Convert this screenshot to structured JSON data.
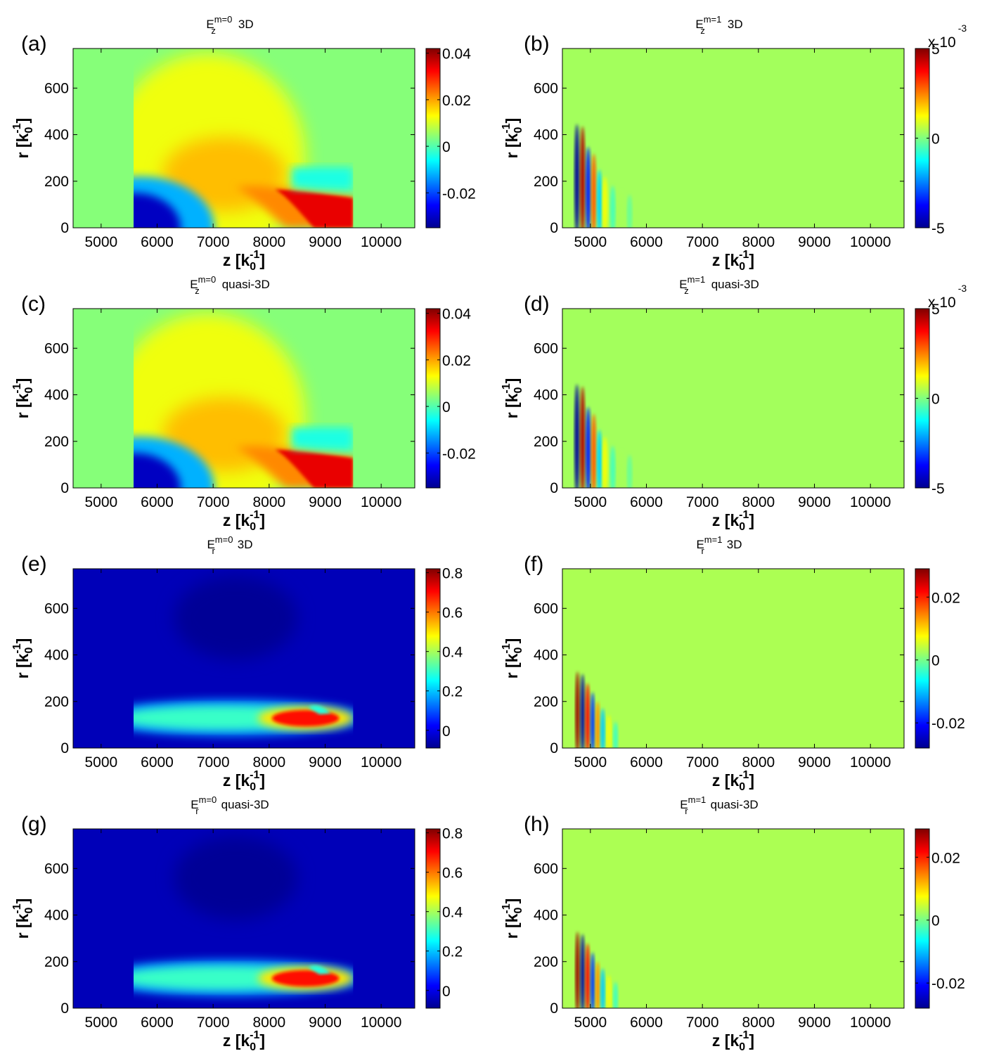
{
  "chart_data": [
    {
      "type": "heatmap",
      "panel_label": "(a)",
      "title": {
        "base": "E",
        "sup": "m=0",
        "sub": "z",
        "suffix": "3D"
      },
      "xlabel": "z [k",
      "ylabel": "r [k",
      "axis_unit_sup": "-1",
      "axis_unit_sub": "0",
      "axis_unit_close": "]",
      "xlim": [
        4500,
        10600
      ],
      "ylim": [
        0,
        770
      ],
      "xticks": [
        "5000",
        "6000",
        "7000",
        "8000",
        "9000",
        "10000"
      ],
      "yticks": [
        "0",
        "200",
        "400",
        "600"
      ],
      "colorbar": {
        "range": [
          -0.035,
          0.042
        ],
        "ticks": [
          "0.04",
          "0.02",
          "0",
          "-0.02"
        ],
        "tick_values": [
          0.04,
          0.02,
          0,
          -0.02
        ],
        "multiplier": null
      },
      "field": "Ez0"
    },
    {
      "type": "heatmap",
      "panel_label": "(b)",
      "title": {
        "base": "E",
        "sup": "m=1",
        "sub": "z",
        "suffix": "3D"
      },
      "xlabel": "z [k",
      "ylabel": "r [k",
      "axis_unit_sup": "-1",
      "axis_unit_sub": "0",
      "axis_unit_close": "]",
      "xlim": [
        4500,
        10600
      ],
      "ylim": [
        0,
        770
      ],
      "xticks": [
        "5000",
        "6000",
        "7000",
        "8000",
        "9000",
        "10000"
      ],
      "yticks": [
        "0",
        "200",
        "400",
        "600"
      ],
      "colorbar": {
        "range": [
          -5,
          5
        ],
        "ticks": [
          "5",
          "0",
          "-5"
        ],
        "tick_values": [
          5,
          0,
          -5
        ],
        "multiplier": {
          "text": "x 10",
          "exp": "-3"
        }
      },
      "field": "Ez1"
    },
    {
      "type": "heatmap",
      "panel_label": "(c)",
      "title": {
        "base": "E",
        "sup": "m=0",
        "sub": "z",
        "suffix": "quasi-3D"
      },
      "xlabel": "z [k",
      "ylabel": "r [k",
      "axis_unit_sup": "-1",
      "axis_unit_sub": "0",
      "axis_unit_close": "]",
      "xlim": [
        4500,
        10600
      ],
      "ylim": [
        0,
        770
      ],
      "xticks": [
        "5000",
        "6000",
        "7000",
        "8000",
        "9000",
        "10000"
      ],
      "yticks": [
        "0",
        "200",
        "400",
        "600"
      ],
      "colorbar": {
        "range": [
          -0.035,
          0.042
        ],
        "ticks": [
          "0.04",
          "0.02",
          "0",
          "-0.02"
        ],
        "tick_values": [
          0.04,
          0.02,
          0,
          -0.02
        ],
        "multiplier": null
      },
      "field": "Ez0"
    },
    {
      "type": "heatmap",
      "panel_label": "(d)",
      "title": {
        "base": "E",
        "sup": "m=1",
        "sub": "z",
        "suffix": "quasi-3D"
      },
      "xlabel": "z [k",
      "ylabel": "r [k",
      "axis_unit_sup": "-1",
      "axis_unit_sub": "0",
      "axis_unit_close": "]",
      "xlim": [
        4500,
        10600
      ],
      "ylim": [
        0,
        770
      ],
      "xticks": [
        "5000",
        "6000",
        "7000",
        "8000",
        "9000",
        "10000"
      ],
      "yticks": [
        "0",
        "200",
        "400",
        "600"
      ],
      "colorbar": {
        "range": [
          -5,
          5
        ],
        "ticks": [
          "5",
          "0",
          "-5"
        ],
        "tick_values": [
          5,
          0,
          -5
        ],
        "multiplier": {
          "text": "x 10",
          "exp": "-3"
        }
      },
      "field": "Ez1"
    },
    {
      "type": "heatmap",
      "panel_label": "(e)",
      "title": {
        "base": "E",
        "sup": "m=0",
        "sub": "r",
        "suffix": "3D"
      },
      "xlabel": "z [k",
      "ylabel": "r [k",
      "axis_unit_sup": "-1",
      "axis_unit_sub": "0",
      "axis_unit_close": "]",
      "xlim": [
        4500,
        10600
      ],
      "ylim": [
        0,
        770
      ],
      "xticks": [
        "5000",
        "6000",
        "7000",
        "8000",
        "9000",
        "10000"
      ],
      "yticks": [
        "0",
        "200",
        "400",
        "600"
      ],
      "colorbar": {
        "range": [
          -0.09,
          0.82
        ],
        "ticks": [
          "0.8",
          "0.6",
          "0.4",
          "0.2",
          "0"
        ],
        "tick_values": [
          0.8,
          0.6,
          0.4,
          0.2,
          0
        ],
        "multiplier": null
      },
      "field": "Er0"
    },
    {
      "type": "heatmap",
      "panel_label": "(f)",
      "title": {
        "base": "E",
        "sup": "m=1",
        "sub": "r",
        "suffix": "3D"
      },
      "xlabel": "z [k",
      "ylabel": "r [k",
      "axis_unit_sup": "-1",
      "axis_unit_sub": "0",
      "axis_unit_close": "]",
      "xlim": [
        4500,
        10600
      ],
      "ylim": [
        0,
        770
      ],
      "xticks": [
        "5000",
        "6000",
        "7000",
        "8000",
        "9000",
        "10000"
      ],
      "yticks": [
        "0",
        "200",
        "400",
        "600"
      ],
      "colorbar": {
        "range": [
          -0.028,
          0.029
        ],
        "ticks": [
          "0.02",
          "0",
          "-0.02"
        ],
        "tick_values": [
          0.02,
          0,
          -0.02
        ],
        "multiplier": null
      },
      "field": "Er1"
    },
    {
      "type": "heatmap",
      "panel_label": "(g)",
      "title": {
        "base": "E",
        "sup": "m=0",
        "sub": "r",
        "suffix": "quasi-3D"
      },
      "xlabel": "z [k",
      "ylabel": "r [k",
      "axis_unit_sup": "-1",
      "axis_unit_sub": "0",
      "axis_unit_close": "]",
      "xlim": [
        4500,
        10600
      ],
      "ylim": [
        0,
        770
      ],
      "xticks": [
        "5000",
        "6000",
        "7000",
        "8000",
        "9000",
        "10000"
      ],
      "yticks": [
        "0",
        "200",
        "400",
        "600"
      ],
      "colorbar": {
        "range": [
          -0.09,
          0.82
        ],
        "ticks": [
          "0.8",
          "0.6",
          "0.4",
          "0.2",
          "0"
        ],
        "tick_values": [
          0.8,
          0.6,
          0.4,
          0.2,
          0
        ],
        "multiplier": null
      },
      "field": "Er0"
    },
    {
      "type": "heatmap",
      "panel_label": "(h)",
      "title": {
        "base": "E",
        "sup": "m=1",
        "sub": "r",
        "suffix": "quasi-3D"
      },
      "xlabel": "z [k",
      "ylabel": "r [k",
      "axis_unit_sup": "-1",
      "axis_unit_sub": "0",
      "axis_unit_close": "]",
      "xlim": [
        4500,
        10600
      ],
      "ylim": [
        0,
        770
      ],
      "xticks": [
        "5000",
        "6000",
        "7000",
        "8000",
        "9000",
        "10000"
      ],
      "yticks": [
        "0",
        "200",
        "400",
        "600"
      ],
      "colorbar": {
        "range": [
          -0.028,
          0.029
        ],
        "ticks": [
          "0.02",
          "0",
          "-0.02"
        ],
        "tick_values": [
          0.02,
          0,
          -0.02
        ],
        "multiplier": null
      },
      "field": "Er1"
    }
  ]
}
